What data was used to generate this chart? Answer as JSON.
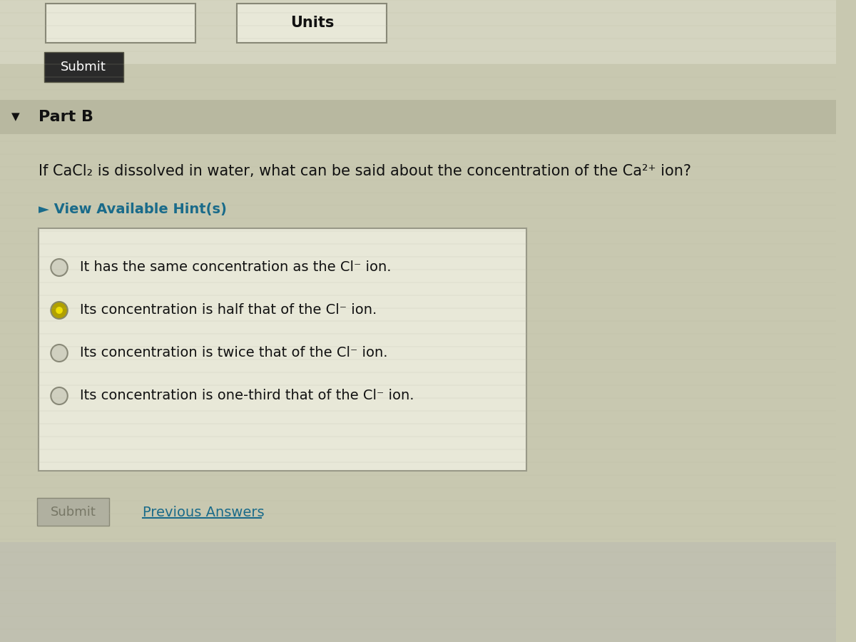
{
  "bg_color": "#c8c8b0",
  "top_area_color": "#d4d4c0",
  "part_b_bar_color": "#b8b8a0",
  "submit_btn_color": "#2a2a2a",
  "submit_btn_text": "Submit",
  "submit_text_color": "#ffffff",
  "part_b_label": "Part B",
  "arrow_color": "#000000",
  "question_text": "If CaCl₂ is dissolved in water, what can be said about the concentration of the Ca²⁺ ion?",
  "hint_text": "► View Available Hint(s)",
  "hint_color": "#1a6b8a",
  "options_box_bg": "#e8e8d8",
  "options_box_border": "#999988",
  "options": [
    "It has the same concentration as the Cl⁻ ion.",
    "Its concentration is half that of the Cl⁻ ion.",
    "Its concentration is twice that of the Cl⁻ ion.",
    "Its concentration is one-third that of the Cl⁻ ion."
  ],
  "selected_option": 1,
  "radio_selected_color": "#b0a000",
  "text_color": "#111111",
  "previous_answers_text": "Previous Answers",
  "previous_answers_color": "#1a6b8a",
  "units_text": "Units",
  "submit_bottom_color": "#c0c0b0"
}
